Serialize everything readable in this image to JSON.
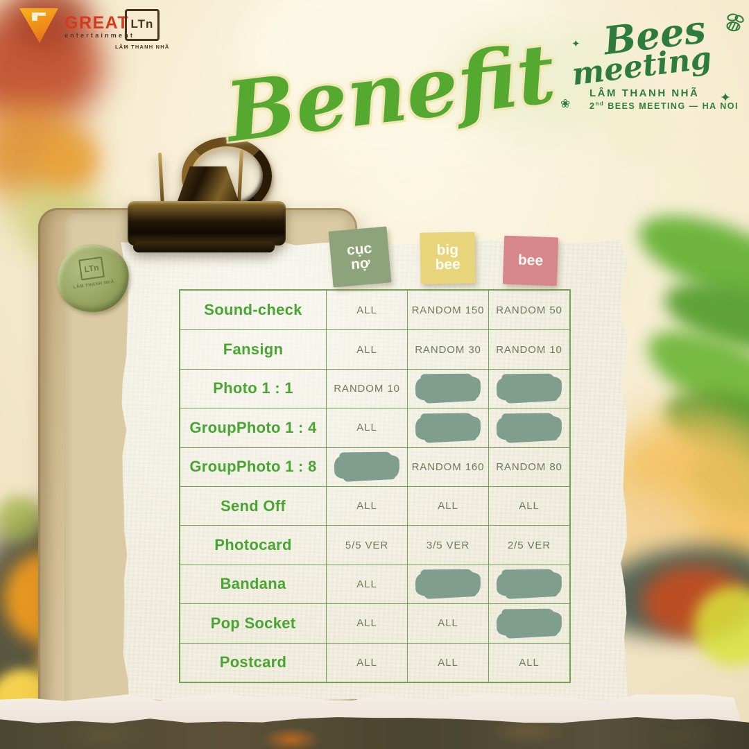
{
  "header": {
    "great_logo": {
      "name": "GREAT",
      "subtitle": "entertainment"
    },
    "ltn_logo": {
      "monogram": "LTn",
      "name": "LÂM THANH NHÃ"
    },
    "title": "Benefit",
    "event_logo": {
      "script_line1": "Bees",
      "script_line2": "meeting",
      "artist": "LÂM THANH NHÃ",
      "edition_number": "2",
      "edition_suffix": "nd",
      "event_name": "BEES MEETING",
      "dash": "—",
      "city": "HA NOI",
      "sparkle_glyph": "✦",
      "flower_glyph": "❀"
    }
  },
  "board": {
    "seal": {
      "monogram": "LTn",
      "text": "LÂM THANH NHÃ"
    }
  },
  "table": {
    "tiers": [
      {
        "label": "cục nợ",
        "lines": [
          "cục",
          "nợ"
        ],
        "color": "#8CA37B"
      },
      {
        "label": "big bee",
        "lines": [
          "big",
          "bee"
        ],
        "color": "#E8D47B"
      },
      {
        "label": "bee",
        "lines": [
          "bee"
        ],
        "color": "#D5878C"
      }
    ],
    "rows": [
      {
        "label": "Sound-check",
        "values": [
          "ALL",
          "RANDOM 150",
          "RANDOM 50"
        ]
      },
      {
        "label": "Fansign",
        "values": [
          "ALL",
          "RANDOM 30",
          "RANDOM 10"
        ]
      },
      {
        "label": "Photo 1 : 1",
        "values": [
          "RANDOM 10",
          null,
          null
        ]
      },
      {
        "label": "GroupPhoto 1 : 4",
        "values": [
          "ALL",
          null,
          null
        ]
      },
      {
        "label": "GroupPhoto 1 : 8",
        "values": [
          null,
          "RANDOM 160",
          "RANDOM 80"
        ]
      },
      {
        "label": "Send Off",
        "values": [
          "ALL",
          "ALL",
          "ALL"
        ]
      },
      {
        "label": "Photocard",
        "values": [
          "5/5 VER",
          "3/5 VER",
          "2/5 VER"
        ]
      },
      {
        "label": "Bandana",
        "values": [
          "ALL",
          null,
          null
        ]
      },
      {
        "label": "Pop Socket",
        "values": [
          "ALL",
          "ALL",
          null
        ]
      },
      {
        "label": "Postcard",
        "values": [
          "ALL",
          "ALL",
          "ALL"
        ]
      }
    ]
  },
  "colors": {
    "title_green": "#55A930",
    "event_logo_green": "#2E7C3B",
    "row_label_green": "#48A531",
    "grid_green": "#74A254",
    "value_olive": "#6D7B58",
    "brush_sage": "#7F9E8D",
    "paper_cream": "#F2EFE1",
    "wood_tan": "#D5C298",
    "seal_green": "#97A562",
    "great_orange": "#EF8B1A",
    "great_red": "#D6391B",
    "ltn_brown": "#46351F"
  }
}
